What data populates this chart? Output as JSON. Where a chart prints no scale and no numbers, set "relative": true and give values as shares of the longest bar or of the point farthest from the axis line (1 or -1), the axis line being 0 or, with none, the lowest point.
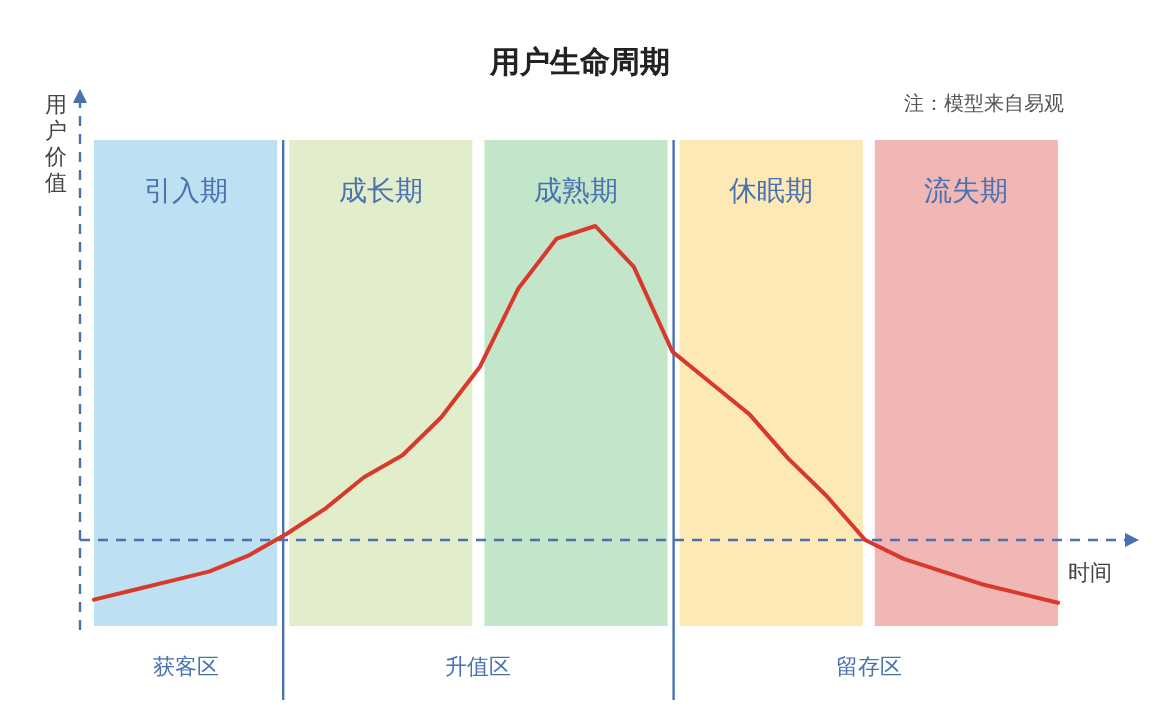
{
  "chart_data": {
    "type": "line",
    "title": "用户生命周期",
    "xlabel": "时间",
    "ylabel": "用户价值",
    "relative": true,
    "categories": [
      null,
      null,
      null,
      null,
      null,
      null,
      null,
      null,
      null,
      null,
      null,
      null,
      null,
      null,
      null,
      null,
      null,
      null,
      null,
      null,
      null,
      null,
      null,
      null,
      null,
      null
    ],
    "series": [
      {
        "color": "#d9392b",
        "values": [
          -0.19,
          -0.16,
          -0.13,
          -0.1,
          -0.05,
          0.02,
          0.1,
          0.2,
          0.27,
          0.39,
          0.55,
          0.8,
          0.96,
          1,
          0.87,
          0.6,
          0.5,
          0.4,
          0.26,
          0.14,
          0,
          -0.06,
          -0.1,
          -0.14,
          -0.17,
          -0.2
        ]
      }
    ],
    "ref_lines": [
      {
        "axis": "y",
        "value": 0,
        "color": "#4a72b0",
        "line_style": "dashed"
      }
    ],
    "annotations": [
      "注：模型来自易观",
      "引入期",
      "成长期",
      "成熟期",
      "休眠期",
      "流失期",
      "获客区",
      "升值区",
      "留存区"
    ]
  }
}
